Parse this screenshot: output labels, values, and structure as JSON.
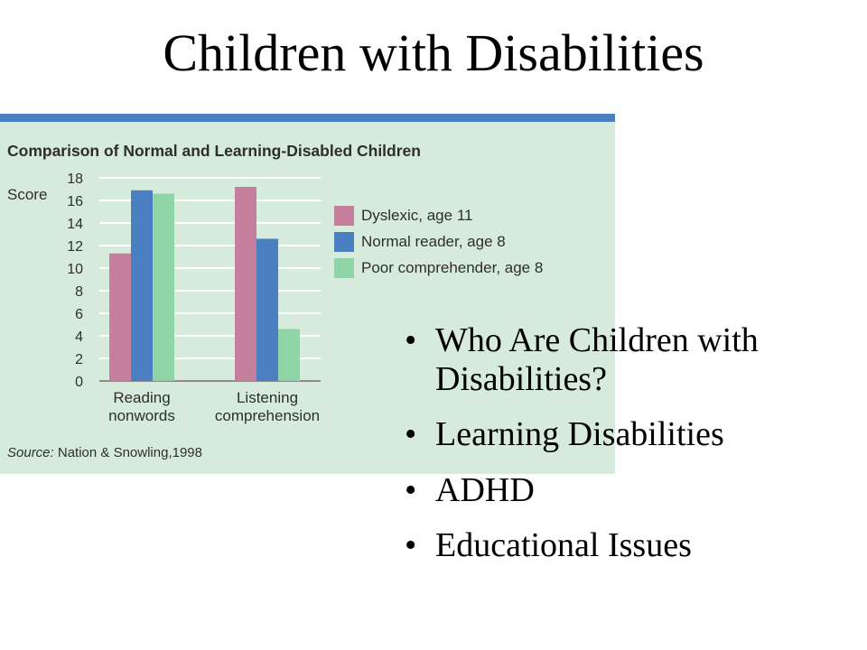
{
  "slide": {
    "title": "Children with Disabilities",
    "bullets": [
      "Who Are Children with Disabilities?",
      "Learning Disabilities",
      "ADHD",
      "Educational Issues"
    ],
    "bullet_symbol": "•"
  },
  "colors": {
    "panel_bg": "#d6ebdb",
    "panel_border": "#4a7fc1"
  },
  "chart_data": {
    "type": "bar",
    "title": "Comparison of Normal and Learning-Disabled Children",
    "ylabel": "Score",
    "xlabel": "",
    "categories": [
      "Reading nonwords",
      "Listening comprehension"
    ],
    "category_lines": [
      [
        "Reading",
        "nonwords"
      ],
      [
        "Listening",
        "comprehension"
      ]
    ],
    "series": [
      {
        "name": "Dyslexic, age 11",
        "values": [
          11.3,
          17.2
        ],
        "color": "#c57f9c"
      },
      {
        "name": "Normal reader, age 8",
        "values": [
          16.9,
          12.6
        ],
        "color": "#4a7fc1"
      },
      {
        "name": "Poor comprehender, age 8",
        "values": [
          16.6,
          4.6
        ],
        "color": "#8fd4a6"
      }
    ],
    "ylim": [
      0,
      18
    ],
    "yticks": [
      "0",
      "2",
      "4",
      "6",
      "8",
      "10",
      "12",
      "14",
      "16",
      "18"
    ],
    "grid": true,
    "legend_position": "right",
    "source_label": "Source:",
    "source_text": "Nation & Snowling,1998"
  }
}
